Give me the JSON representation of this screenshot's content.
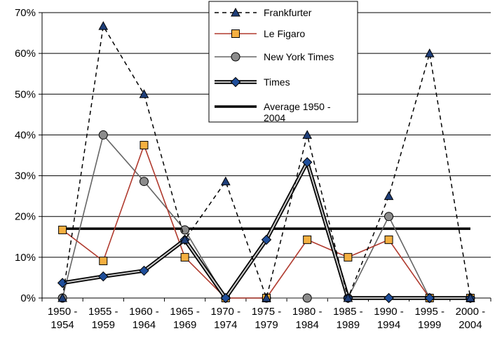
{
  "chart_data": {
    "type": "line",
    "categories": [
      [
        "1950 -",
        "1954"
      ],
      [
        "1955 -",
        "1959"
      ],
      [
        "1960 -",
        "1964"
      ],
      [
        "1965 -",
        "1969"
      ],
      [
        "1970 -",
        "1974"
      ],
      [
        "1975 -",
        "1979"
      ],
      [
        "1980 -",
        "1984"
      ],
      [
        "1985 -",
        "1989"
      ],
      [
        "1990 -",
        "1994"
      ],
      [
        "1995 -",
        "1999"
      ],
      [
        "2000 -",
        "2004"
      ]
    ],
    "ylim": [
      0,
      70
    ],
    "yticks": [
      "0%",
      "10%",
      "20%",
      "30%",
      "40%",
      "50%",
      "60%",
      "70%"
    ],
    "grid": "horizontal",
    "legend_position": "top-right",
    "series": [
      {
        "name": "Frankfurter",
        "values": [
          0,
          66.7,
          50,
          14.3,
          28.6,
          0,
          40,
          0,
          25,
          60,
          0
        ],
        "color": "#000000",
        "dash": "dashed",
        "marker": "triangle",
        "marker_fill": "#1f3f7a"
      },
      {
        "name": "Le Figaro",
        "values": [
          16.7,
          9.1,
          37.5,
          10,
          0,
          0,
          14.3,
          10,
          14.3,
          0,
          0
        ],
        "color": "#b03a2e",
        "dash": "solid",
        "marker": "square",
        "marker_fill": "#f5b041"
      },
      {
        "name": "New York Times",
        "values": [
          0,
          40,
          28.6,
          16.7,
          0,
          0,
          0,
          0,
          20,
          0,
          0
        ],
        "color": "#666666",
        "dash": "solid",
        "marker": "circle",
        "marker_fill": "#8c8c8c"
      },
      {
        "name": "Times",
        "values": [
          3.7,
          5.3,
          6.7,
          14.3,
          0,
          14.3,
          33.3,
          0,
          0,
          0,
          0
        ],
        "color": "#000000",
        "dash": "double",
        "marker": "diamond",
        "marker_fill": "#1f4e9a"
      },
      {
        "name_lines": [
          "Average 1950 -",
          "2004"
        ],
        "values": [
          17,
          17,
          17,
          17,
          17,
          17,
          17,
          17,
          17,
          17,
          17
        ],
        "color": "#000000",
        "dash": "thick",
        "marker": "none"
      }
    ]
  }
}
